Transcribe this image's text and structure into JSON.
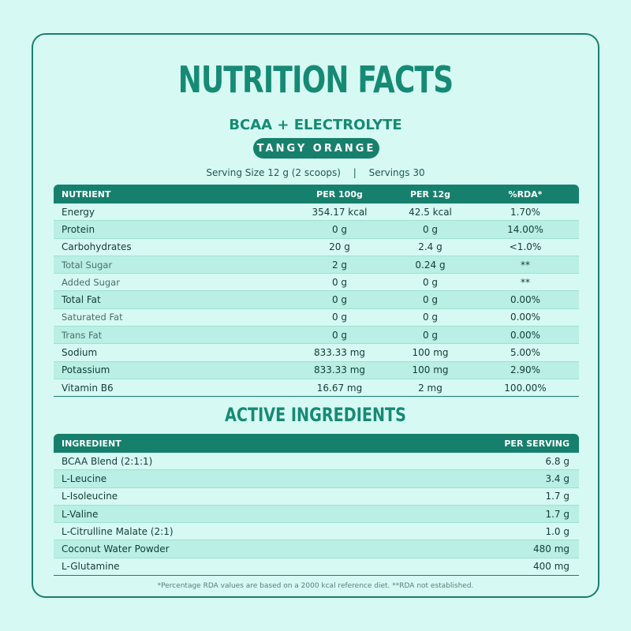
{
  "title": "NUTRITION FACTS",
  "subtitle": "BCAA + ELECTROLYTE",
  "flavor": "TANGY ORANGE",
  "serving": {
    "size_label": "Serving Size",
    "size_value": "12 g (2 scoops)",
    "separator": "|",
    "servings_label": "Servings",
    "servings_value": "30"
  },
  "nutrition": {
    "headers": [
      "NUTRIENT",
      "PER 100g",
      "PER 12g",
      "%RDA*"
    ],
    "rows": [
      {
        "name": "Energy",
        "p100": "354.17 kcal",
        "p12": "42.5 kcal",
        "rda": "1.70%",
        "sub": false
      },
      {
        "name": "Protein",
        "p100": "0 g",
        "p12": "0 g",
        "rda": "14.00%",
        "sub": false
      },
      {
        "name": "Carbohydrates",
        "p100": "20 g",
        "p12": "2.4 g",
        "rda": "<1.0%",
        "sub": false
      },
      {
        "name": "Total Sugar",
        "p100": "2 g",
        "p12": "0.24 g",
        "rda": "**",
        "sub": true
      },
      {
        "name": "Added Sugar",
        "p100": "0 g",
        "p12": "0 g",
        "rda": "**",
        "sub": true
      },
      {
        "name": "Total Fat",
        "p100": "0 g",
        "p12": "0 g",
        "rda": "0.00%",
        "sub": false
      },
      {
        "name": "Saturated Fat",
        "p100": "0 g",
        "p12": "0 g",
        "rda": "0.00%",
        "sub": true
      },
      {
        "name": "Trans Fat",
        "p100": "0 g",
        "p12": "0 g",
        "rda": "0.00%",
        "sub": true
      },
      {
        "name": "Sodium",
        "p100": "833.33 mg",
        "p12": "100 mg",
        "rda": "5.00%",
        "sub": false
      },
      {
        "name": "Potassium",
        "p100": "833.33 mg",
        "p12": "100 mg",
        "rda": "2.90%",
        "sub": false
      },
      {
        "name": "Vitamin B6",
        "p100": "16.67 mg",
        "p12": "2 mg",
        "rda": "100.00%",
        "sub": false
      }
    ]
  },
  "active": {
    "title": "ACTIVE INGREDIENTS",
    "headers": [
      "INGREDIENT",
      "PER SERVING"
    ],
    "rows": [
      {
        "name": "BCAA Blend (2:1:1)",
        "value": "6.8 g"
      },
      {
        "name": "L-Leucine",
        "value": "3.4 g"
      },
      {
        "name": "L-Isoleucine",
        "value": "1.7 g"
      },
      {
        "name": "L-Valine",
        "value": "1.7 g"
      },
      {
        "name": "L-Citrulline Malate (2:1)",
        "value": "1.0 g"
      },
      {
        "name": "Coconut Water Powder",
        "value": "480 mg"
      },
      {
        "name": "L-Glutamine",
        "value": "400 mg"
      }
    ]
  },
  "footnote": "*Percentage RDA values are based on a 2000 kcal reference diet.  **RDA not established.",
  "colors": {
    "accent": "#17806c",
    "background": "#d6faf3",
    "stripe": "#b9efe5"
  }
}
